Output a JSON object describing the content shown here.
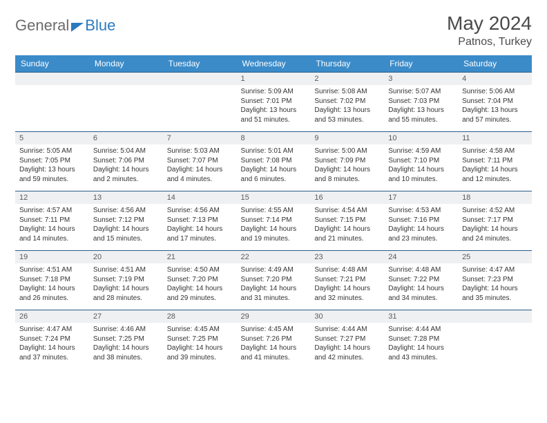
{
  "branding": {
    "logo_text_1": "General",
    "logo_text_2": "Blue"
  },
  "header": {
    "month_title": "May 2024",
    "location": "Patnos, Turkey"
  },
  "styling": {
    "header_bg": "#3b8bc9",
    "header_fg": "#ffffff",
    "cell_head_bg": "#eef0f2",
    "cell_head_fg": "#5a5a5a",
    "cell_border": "#2a5b8a",
    "body_text": "#333333",
    "title_color": "#4a4a4a",
    "logo_gray": "#6b6b6b",
    "logo_blue": "#2a7abf",
    "font_family": "Arial",
    "month_title_fontsize": 28,
    "location_fontsize": 16,
    "dayhead_fontsize": 12,
    "daynum_fontsize": 11,
    "body_fontsize": 10
  },
  "calendar": {
    "day_names": [
      "Sunday",
      "Monday",
      "Tuesday",
      "Wednesday",
      "Thursday",
      "Friday",
      "Saturday"
    ],
    "first_weekday_index": 3,
    "days": [
      {
        "n": "1",
        "sunrise": "5:09 AM",
        "sunset": "7:01 PM",
        "daylight": "13 hours and 51 minutes."
      },
      {
        "n": "2",
        "sunrise": "5:08 AM",
        "sunset": "7:02 PM",
        "daylight": "13 hours and 53 minutes."
      },
      {
        "n": "3",
        "sunrise": "5:07 AM",
        "sunset": "7:03 PM",
        "daylight": "13 hours and 55 minutes."
      },
      {
        "n": "4",
        "sunrise": "5:06 AM",
        "sunset": "7:04 PM",
        "daylight": "13 hours and 57 minutes."
      },
      {
        "n": "5",
        "sunrise": "5:05 AM",
        "sunset": "7:05 PM",
        "daylight": "13 hours and 59 minutes."
      },
      {
        "n": "6",
        "sunrise": "5:04 AM",
        "sunset": "7:06 PM",
        "daylight": "14 hours and 2 minutes."
      },
      {
        "n": "7",
        "sunrise": "5:03 AM",
        "sunset": "7:07 PM",
        "daylight": "14 hours and 4 minutes."
      },
      {
        "n": "8",
        "sunrise": "5:01 AM",
        "sunset": "7:08 PM",
        "daylight": "14 hours and 6 minutes."
      },
      {
        "n": "9",
        "sunrise": "5:00 AM",
        "sunset": "7:09 PM",
        "daylight": "14 hours and 8 minutes."
      },
      {
        "n": "10",
        "sunrise": "4:59 AM",
        "sunset": "7:10 PM",
        "daylight": "14 hours and 10 minutes."
      },
      {
        "n": "11",
        "sunrise": "4:58 AM",
        "sunset": "7:11 PM",
        "daylight": "14 hours and 12 minutes."
      },
      {
        "n": "12",
        "sunrise": "4:57 AM",
        "sunset": "7:11 PM",
        "daylight": "14 hours and 14 minutes."
      },
      {
        "n": "13",
        "sunrise": "4:56 AM",
        "sunset": "7:12 PM",
        "daylight": "14 hours and 15 minutes."
      },
      {
        "n": "14",
        "sunrise": "4:56 AM",
        "sunset": "7:13 PM",
        "daylight": "14 hours and 17 minutes."
      },
      {
        "n": "15",
        "sunrise": "4:55 AM",
        "sunset": "7:14 PM",
        "daylight": "14 hours and 19 minutes."
      },
      {
        "n": "16",
        "sunrise": "4:54 AM",
        "sunset": "7:15 PM",
        "daylight": "14 hours and 21 minutes."
      },
      {
        "n": "17",
        "sunrise": "4:53 AM",
        "sunset": "7:16 PM",
        "daylight": "14 hours and 23 minutes."
      },
      {
        "n": "18",
        "sunrise": "4:52 AM",
        "sunset": "7:17 PM",
        "daylight": "14 hours and 24 minutes."
      },
      {
        "n": "19",
        "sunrise": "4:51 AM",
        "sunset": "7:18 PM",
        "daylight": "14 hours and 26 minutes."
      },
      {
        "n": "20",
        "sunrise": "4:51 AM",
        "sunset": "7:19 PM",
        "daylight": "14 hours and 28 minutes."
      },
      {
        "n": "21",
        "sunrise": "4:50 AM",
        "sunset": "7:20 PM",
        "daylight": "14 hours and 29 minutes."
      },
      {
        "n": "22",
        "sunrise": "4:49 AM",
        "sunset": "7:20 PM",
        "daylight": "14 hours and 31 minutes."
      },
      {
        "n": "23",
        "sunrise": "4:48 AM",
        "sunset": "7:21 PM",
        "daylight": "14 hours and 32 minutes."
      },
      {
        "n": "24",
        "sunrise": "4:48 AM",
        "sunset": "7:22 PM",
        "daylight": "14 hours and 34 minutes."
      },
      {
        "n": "25",
        "sunrise": "4:47 AM",
        "sunset": "7:23 PM",
        "daylight": "14 hours and 35 minutes."
      },
      {
        "n": "26",
        "sunrise": "4:47 AM",
        "sunset": "7:24 PM",
        "daylight": "14 hours and 37 minutes."
      },
      {
        "n": "27",
        "sunrise": "4:46 AM",
        "sunset": "7:25 PM",
        "daylight": "14 hours and 38 minutes."
      },
      {
        "n": "28",
        "sunrise": "4:45 AM",
        "sunset": "7:25 PM",
        "daylight": "14 hours and 39 minutes."
      },
      {
        "n": "29",
        "sunrise": "4:45 AM",
        "sunset": "7:26 PM",
        "daylight": "14 hours and 41 minutes."
      },
      {
        "n": "30",
        "sunrise": "4:44 AM",
        "sunset": "7:27 PM",
        "daylight": "14 hours and 42 minutes."
      },
      {
        "n": "31",
        "sunrise": "4:44 AM",
        "sunset": "7:28 PM",
        "daylight": "14 hours and 43 minutes."
      }
    ],
    "labels": {
      "sunrise": "Sunrise:",
      "sunset": "Sunset:",
      "daylight": "Daylight:"
    }
  }
}
